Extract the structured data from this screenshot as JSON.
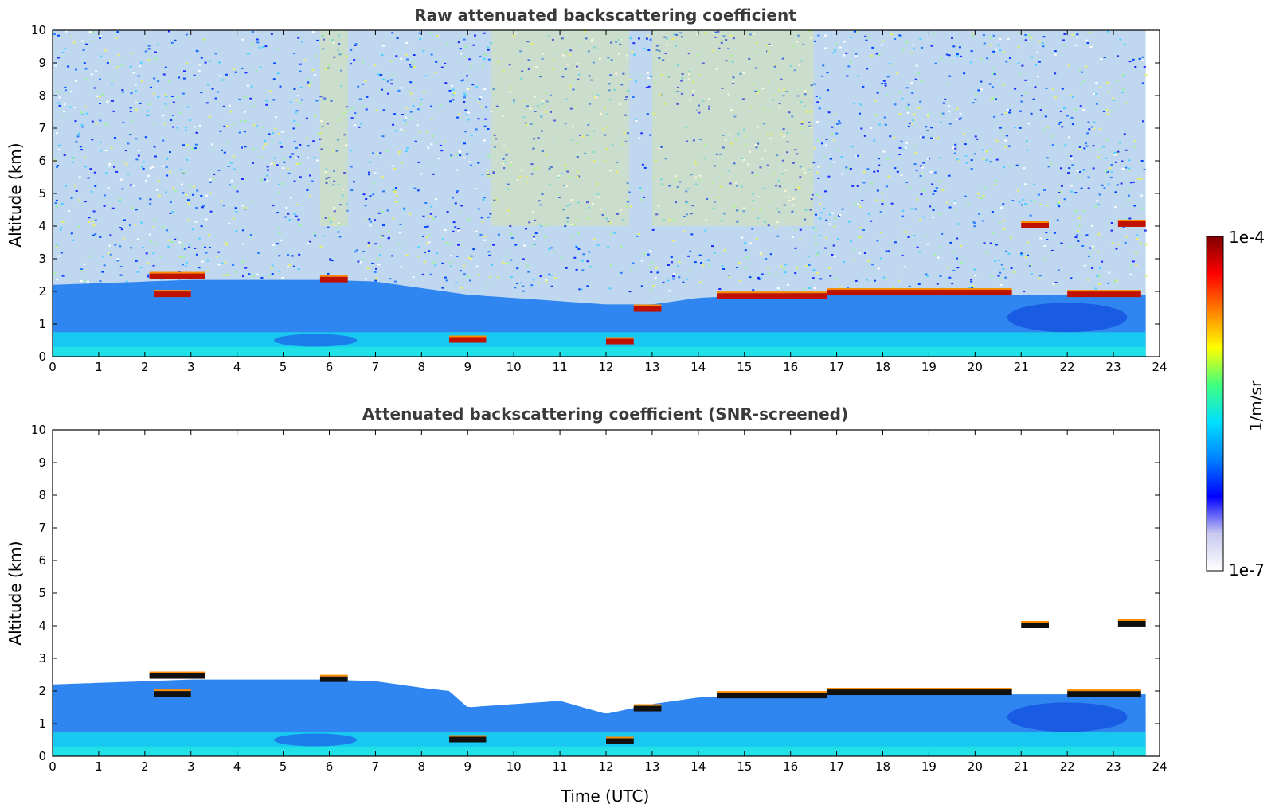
{
  "chart_data": [
    {
      "type": "heatmap",
      "title": "Raw attenuated backscattering coefficient",
      "xlabel": "",
      "ylabel": "Altitude (km)",
      "xlim": [
        0,
        24
      ],
      "ylim": [
        0,
        10
      ],
      "x_ticks": [
        0,
        1,
        2,
        3,
        4,
        5,
        6,
        7,
        8,
        9,
        10,
        11,
        12,
        13,
        14,
        15,
        16,
        17,
        18,
        19,
        20,
        21,
        22,
        23,
        24
      ],
      "y_ticks": [
        0,
        1,
        2,
        3,
        4,
        5,
        6,
        7,
        8,
        9,
        10
      ],
      "data_end_time": 23.7,
      "noise_above_boundary_layer": true,
      "boundary_layer_top_km": [
        {
          "x": 0,
          "y": 2.2
        },
        {
          "x": 3,
          "y": 2.35
        },
        {
          "x": 6,
          "y": 2.35
        },
        {
          "x": 7,
          "y": 2.3
        },
        {
          "x": 8,
          "y": 2.1
        },
        {
          "x": 9,
          "y": 1.9
        },
        {
          "x": 11,
          "y": 1.7
        },
        {
          "x": 12,
          "y": 1.6
        },
        {
          "x": 13,
          "y": 1.6
        },
        {
          "x": 14,
          "y": 1.8
        },
        {
          "x": 16,
          "y": 1.95
        },
        {
          "x": 18,
          "y": 1.95
        },
        {
          "x": 20,
          "y": 1.9
        },
        {
          "x": 22,
          "y": 1.9
        },
        {
          "x": 23.7,
          "y": 1.9
        }
      ],
      "cloud_layers": [
        {
          "t0": 2.1,
          "t1": 3.3,
          "alt": 2.45
        },
        {
          "t0": 2.2,
          "t1": 3.0,
          "alt": 1.9
        },
        {
          "t0": 5.8,
          "t1": 6.4,
          "alt": 2.35
        },
        {
          "t0": 8.6,
          "t1": 9.4,
          "alt": 0.5
        },
        {
          "t0": 12.0,
          "t1": 12.6,
          "alt": 0.45
        },
        {
          "t0": 12.6,
          "t1": 13.2,
          "alt": 1.45
        },
        {
          "t0": 14.4,
          "t1": 16.8,
          "alt": 1.85
        },
        {
          "t0": 16.8,
          "t1": 20.8,
          "alt": 1.95
        },
        {
          "t0": 21.0,
          "t1": 21.6,
          "alt": 4.0
        },
        {
          "t0": 23.1,
          "t1": 23.7,
          "alt": 4.05
        },
        {
          "t0": 22.0,
          "t1": 23.6,
          "alt": 1.9
        }
      ]
    },
    {
      "type": "heatmap",
      "title": "Attenuated backscattering coefficient (SNR-screened)",
      "xlabel": "Time (UTC)",
      "ylabel": "Altitude (km)",
      "xlim": [
        0,
        24
      ],
      "ylim": [
        0,
        10
      ],
      "x_ticks": [
        0,
        1,
        2,
        3,
        4,
        5,
        6,
        7,
        8,
        9,
        10,
        11,
        12,
        13,
        14,
        15,
        16,
        17,
        18,
        19,
        20,
        21,
        22,
        23,
        24
      ],
      "y_ticks": [
        0,
        1,
        2,
        3,
        4,
        5,
        6,
        7,
        8,
        9,
        10
      ],
      "data_end_time": 23.7,
      "noise_above_boundary_layer": false,
      "boundary_layer_top_km": [
        {
          "x": 0,
          "y": 2.2
        },
        {
          "x": 3,
          "y": 2.35
        },
        {
          "x": 6,
          "y": 2.35
        },
        {
          "x": 7,
          "y": 2.3
        },
        {
          "x": 8,
          "y": 2.1
        },
        {
          "x": 8.6,
          "y": 2.0
        },
        {
          "x": 9,
          "y": 1.5
        },
        {
          "x": 11,
          "y": 1.7
        },
        {
          "x": 12,
          "y": 1.3
        },
        {
          "x": 13,
          "y": 1.6
        },
        {
          "x": 14,
          "y": 1.8
        },
        {
          "x": 16,
          "y": 1.95
        },
        {
          "x": 18,
          "y": 1.95
        },
        {
          "x": 20,
          "y": 1.9
        },
        {
          "x": 22,
          "y": 1.9
        },
        {
          "x": 23.7,
          "y": 1.9
        }
      ],
      "cloud_layers": [
        {
          "t0": 2.1,
          "t1": 3.3,
          "alt": 2.45
        },
        {
          "t0": 2.2,
          "t1": 3.0,
          "alt": 1.9
        },
        {
          "t0": 5.8,
          "t1": 6.4,
          "alt": 2.35
        },
        {
          "t0": 8.6,
          "t1": 9.4,
          "alt": 0.5
        },
        {
          "t0": 12.0,
          "t1": 12.6,
          "alt": 0.45
        },
        {
          "t0": 12.6,
          "t1": 13.2,
          "alt": 1.45
        },
        {
          "t0": 14.4,
          "t1": 16.8,
          "alt": 1.85
        },
        {
          "t0": 16.8,
          "t1": 20.8,
          "alt": 1.95
        },
        {
          "t0": 21.0,
          "t1": 21.6,
          "alt": 4.0
        },
        {
          "t0": 23.1,
          "t1": 23.7,
          "alt": 4.05
        },
        {
          "t0": 22.0,
          "t1": 23.6,
          "alt": 1.9
        }
      ]
    }
  ],
  "colorbar": {
    "label": "1/m/sr",
    "max_label": "1e-4",
    "min_label": "1e-7",
    "colormap": [
      "#ffffff",
      "#c8c8f0",
      "#0000ff",
      "#0080ff",
      "#00e0ff",
      "#40ff80",
      "#ffff00",
      "#ff8000",
      "#ff0000",
      "#800000"
    ]
  }
}
